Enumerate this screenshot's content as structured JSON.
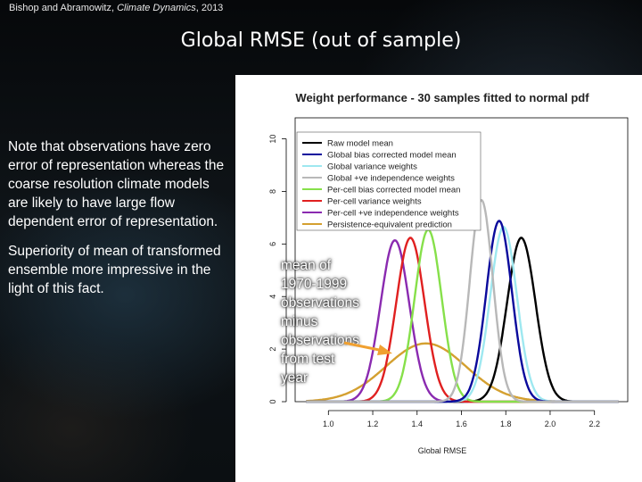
{
  "citation": {
    "authors": "Bishop and Abramowitz,",
    "journal": "Climate Dynamics",
    "year": ", 2013"
  },
  "slide_title": "Global RMSE (out of sample)",
  "notes": [
    "Note that observations have zero error of representation whereas the coarse resolution climate models are likely to have large flow dependent error of representation.",
    "Superiority of mean of transformed ensemble more impressive in the light of this fact."
  ],
  "annotation": {
    "lines": [
      "mean of",
      "1970-1999",
      "observations",
      "minus",
      "observations",
      "from test",
      "year"
    ],
    "arrow_color": "#f0a030"
  },
  "chart_data": {
    "type": "line",
    "title": "Weight performance - 30 samples fitted to normal pdf",
    "xlabel": "Global RMSE",
    "ylabel": "",
    "xlim": [
      0.85,
      2.35
    ],
    "ylim": [
      0,
      10.8
    ],
    "xticks": [
      1.0,
      1.2,
      1.4,
      1.6,
      1.8,
      2.0,
      2.2
    ],
    "xtick_labels": [
      "1.0",
      "1.2",
      "1.4",
      "1.6",
      "1.8",
      "2.0",
      "2.2"
    ],
    "yticks": [
      0,
      2,
      4,
      6,
      8,
      10
    ],
    "ytick_labels": [
      "0",
      "2",
      "4",
      "6",
      "8",
      "10"
    ],
    "grid": false,
    "legend_position": "top-left",
    "series": [
      {
        "name": "Raw model mean",
        "color": "#000000",
        "mean": 1.87,
        "sd": 0.064
      },
      {
        "name": "Global bias corrected model mean",
        "color": "#0a0a9c",
        "mean": 1.77,
        "sd": 0.058
      },
      {
        "name": "Global variance weights",
        "color": "#9ee8f0",
        "mean": 1.79,
        "sd": 0.06
      },
      {
        "name": "Global +ve independence weights",
        "color": "#b8b8b8",
        "mean": 1.69,
        "sd": 0.052
      },
      {
        "name": "Per-cell bias corrected model mean",
        "color": "#86e04a",
        "mean": 1.45,
        "sd": 0.061
      },
      {
        "name": "Per-cell variance weights",
        "color": "#e02020",
        "mean": 1.37,
        "sd": 0.064
      },
      {
        "name": "Per-cell +ve independence weights",
        "color": "#8a2ab0",
        "mean": 1.3,
        "sd": 0.065
      },
      {
        "name": "Persistence-equivalent prediction",
        "color": "#d4a030",
        "mean": 1.44,
        "sd": 0.18
      }
    ]
  }
}
